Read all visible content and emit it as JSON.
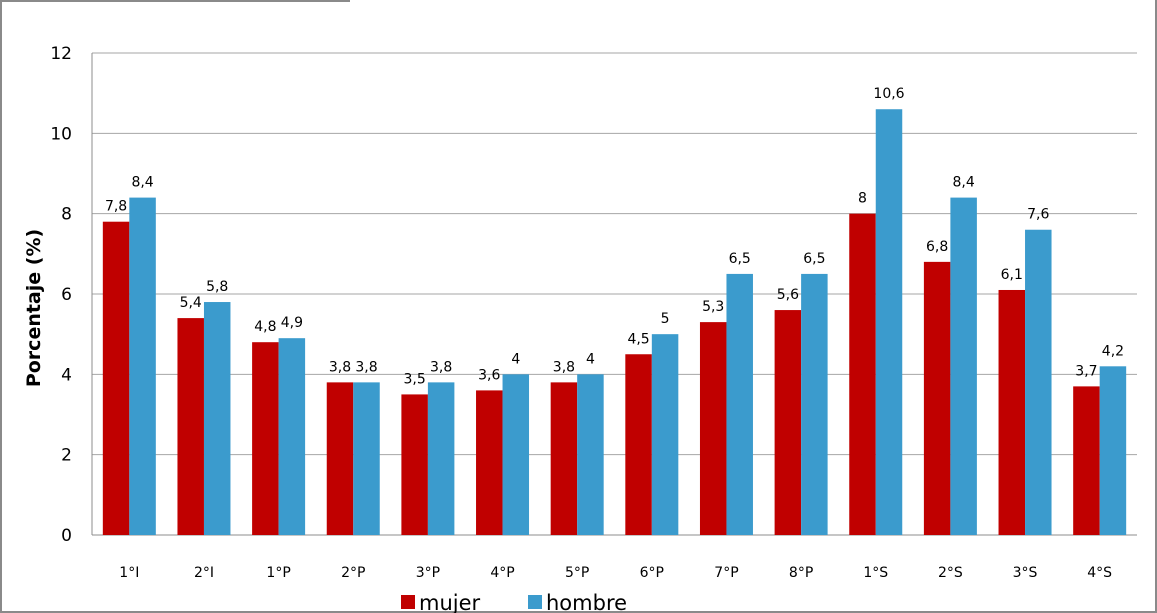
{
  "chart_data": {
    "type": "bar",
    "title": "",
    "xlabel": "",
    "ylabel": "Porcentaje (%)",
    "ylim": [
      0,
      12
    ],
    "yticks": [
      "0",
      "2",
      "4",
      "6",
      "8",
      "10",
      "12"
    ],
    "grid": true,
    "legend_position": "bottom",
    "categories": [
      "1°I",
      "2°I",
      "1°P",
      "2°P",
      "3°P",
      "4°P",
      "5°P",
      "6°P",
      "7°P",
      "8°P",
      "1°S",
      "2°S",
      "3°S",
      "4°S"
    ],
    "series": [
      {
        "name": "mujer",
        "color": "#c00000",
        "values": [
          7.8,
          5.4,
          4.8,
          3.8,
          3.5,
          3.6,
          3.8,
          4.5,
          5.3,
          5.6,
          8,
          6.8,
          6.1,
          3.7
        ],
        "labels": [
          "7,8",
          "5,4",
          "4,8",
          "3,8",
          "3,5",
          "3,6",
          "3,8",
          "4,5",
          "5,3",
          "5,6",
          "8",
          "6,8",
          "6,1",
          "3,7"
        ]
      },
      {
        "name": "hombre",
        "color": "#3b9bcd",
        "values": [
          8.4,
          5.8,
          4.9,
          3.8,
          3.8,
          4,
          4,
          5,
          6.5,
          6.5,
          10.6,
          8.4,
          7.6,
          4.2
        ],
        "labels": [
          "8,4",
          "5,8",
          "4,9",
          "3,8",
          "3,8",
          "4",
          "4",
          "5",
          "6,5",
          "6,5",
          "10,6",
          "8,4",
          "7,6",
          "4,2"
        ]
      }
    ]
  }
}
